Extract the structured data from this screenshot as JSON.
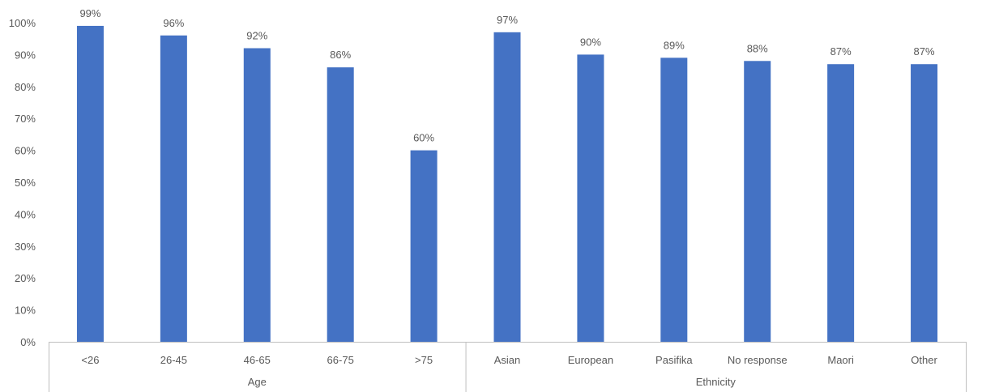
{
  "chart_data": {
    "type": "bar",
    "title": "",
    "ylabel": "",
    "ylim": [
      0,
      100
    ],
    "y_ticks": [
      "0%",
      "10%",
      "20%",
      "30%",
      "40%",
      "50%",
      "60%",
      "70%",
      "80%",
      "90%",
      "100%"
    ],
    "grid": false,
    "legend": "none",
    "bar_color": "#4472c4",
    "groups": [
      {
        "name": "Age",
        "categories": [
          "<26",
          "26-45",
          "46-65",
          "66-75",
          ">75"
        ]
      },
      {
        "name": "Ethnicity",
        "categories": [
          "Asian",
          "European",
          "Pasifika",
          "No response",
          "Maori",
          "Other"
        ]
      }
    ],
    "categories": [
      "<26",
      "26-45",
      "46-65",
      "66-75",
      ">75",
      "Asian",
      "European",
      "Pasifika",
      "No response",
      "Maori",
      "Other"
    ],
    "values": [
      99,
      96,
      92,
      86,
      60,
      97,
      90,
      89,
      88,
      87,
      87
    ],
    "data_labels": [
      "99%",
      "96%",
      "92%",
      "86%",
      "60%",
      "97%",
      "90%",
      "89%",
      "88%",
      "87%",
      "87%"
    ]
  }
}
